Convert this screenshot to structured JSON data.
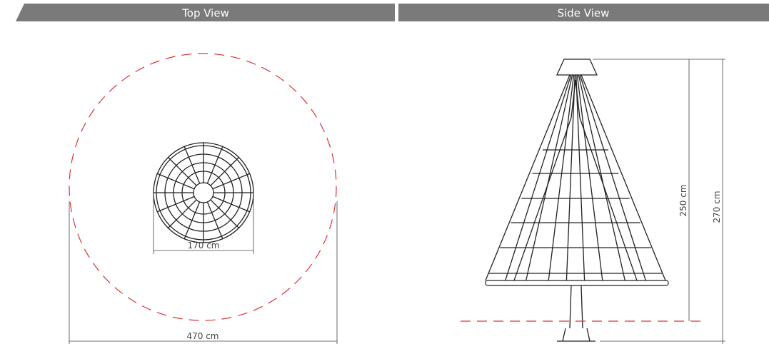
{
  "panels": [
    {
      "title": "Top View",
      "dimensions": [
        "170 cm",
        "470 cm"
      ]
    },
    {
      "title": "Side View",
      "dimensions": [
        "250 cm",
        "270 cm"
      ]
    }
  ]
}
